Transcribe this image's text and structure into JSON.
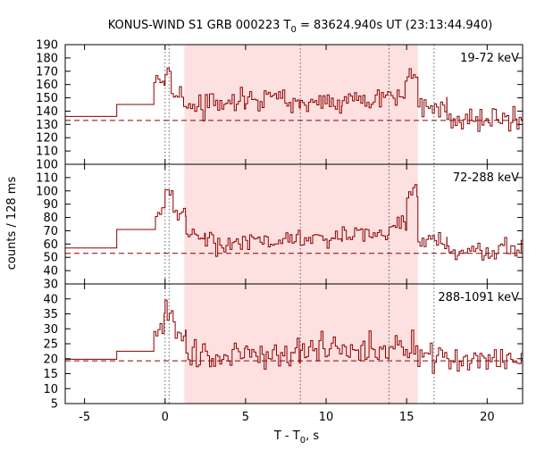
{
  "title": {
    "prefix": "KONUS-WIND S1 GRB 000223 T",
    "sub": "0",
    "suffix": " = 83624.940s UT (23:13:44.940)"
  },
  "xlabel": {
    "prefix": "T - T",
    "sub": "0",
    "suffix": ", s"
  },
  "ylabel": "counts / 128 ms",
  "colors": {
    "curve": "#8b0000",
    "shade": "#fde0e0",
    "background": "#ffffff",
    "axes": "#000000",
    "guide": "#555555"
  },
  "chart_data": {
    "type": "line",
    "subtype": "step-histogram (three stacked light-curve panels)",
    "x_range": [
      -6.2,
      22.2
    ],
    "x_ticks": [
      -5,
      0,
      5,
      10,
      15,
      20
    ],
    "shaded_interval": [
      1.2,
      15.7
    ],
    "vertical_lines": [
      {
        "x": 0.0,
        "style": "dotted"
      },
      {
        "x": 0.25,
        "style": "dotted"
      },
      {
        "x": 8.4,
        "style": "dotted"
      },
      {
        "x": 13.9,
        "style": "dotted"
      },
      {
        "x": 16.7,
        "style": "dotted"
      }
    ],
    "panels": [
      {
        "label": "19-72 keV",
        "ylim": [
          100,
          190
        ],
        "y_ticks": [
          100,
          110,
          120,
          130,
          140,
          150,
          160,
          170,
          180,
          190
        ],
        "background_level": 133,
        "pre_trigger_steps": [
          {
            "x0": -6.2,
            "x1": -3.0,
            "y": 136
          },
          {
            "x0": -3.0,
            "x1": -0.7,
            "y": 145
          }
        ],
        "bins": [
          {
            "x0": -0.7,
            "x1": 0.0,
            "y": 164
          },
          {
            "x0": 0.0,
            "x1": 0.384,
            "y": 173
          },
          {
            "x0": 0.384,
            "x1": 1.2,
            "y": 152
          },
          {
            "x0": 1.2,
            "x1": 2.5,
            "y": 143
          },
          {
            "x0": 2.5,
            "x1": 5.0,
            "y": 148
          },
          {
            "x0": 5.0,
            "x1": 8.4,
            "y": 149
          },
          {
            "x0": 8.4,
            "x1": 11.0,
            "y": 147
          },
          {
            "x0": 11.0,
            "x1": 13.9,
            "y": 150
          },
          {
            "x0": 13.9,
            "x1": 14.9,
            "y": 152
          },
          {
            "x0": 14.9,
            "x1": 15.7,
            "y": 165
          },
          {
            "x0": 15.7,
            "x1": 17.5,
            "y": 142
          },
          {
            "x0": 17.5,
            "x1": 22.2,
            "y": 134
          }
        ],
        "noise": 12
      },
      {
        "label": "72-288 keV",
        "ylim": [
          30,
          120
        ],
        "y_ticks": [
          30,
          40,
          50,
          60,
          70,
          80,
          90,
          100,
          110
        ],
        "background_level": 53,
        "pre_trigger_steps": [
          {
            "x0": -6.2,
            "x1": -3.0,
            "y": 57
          },
          {
            "x0": -3.0,
            "x1": -0.6,
            "y": 71
          }
        ],
        "bins": [
          {
            "x0": -0.6,
            "x1": 0.0,
            "y": 84
          },
          {
            "x0": 0.0,
            "x1": 0.5,
            "y": 97
          },
          {
            "x0": 0.5,
            "x1": 1.3,
            "y": 82
          },
          {
            "x0": 1.3,
            "x1": 2.5,
            "y": 66
          },
          {
            "x0": 2.5,
            "x1": 5.0,
            "y": 60
          },
          {
            "x0": 5.0,
            "x1": 7.5,
            "y": 63
          },
          {
            "x0": 7.5,
            "x1": 11.0,
            "y": 64
          },
          {
            "x0": 11.0,
            "x1": 13.9,
            "y": 67
          },
          {
            "x0": 13.9,
            "x1": 15.0,
            "y": 76
          },
          {
            "x0": 15.0,
            "x1": 15.7,
            "y": 99
          },
          {
            "x0": 15.7,
            "x1": 17.5,
            "y": 63
          },
          {
            "x0": 17.5,
            "x1": 22.2,
            "y": 56
          }
        ],
        "noise": 11
      },
      {
        "label": "288-1091 keV",
        "ylim": [
          5,
          45
        ],
        "y_ticks": [
          5,
          10,
          15,
          20,
          25,
          30,
          35,
          40
        ],
        "background_level": 19.3,
        "pre_trigger_steps": [
          {
            "x0": -6.2,
            "x1": -3.0,
            "y": 19.8
          },
          {
            "x0": -3.0,
            "x1": -0.7,
            "y": 22.5
          }
        ],
        "bins": [
          {
            "x0": -0.7,
            "x1": 0.0,
            "y": 30
          },
          {
            "x0": 0.0,
            "x1": 0.5,
            "y": 38
          },
          {
            "x0": 0.5,
            "x1": 1.3,
            "y": 27
          },
          {
            "x0": 1.3,
            "x1": 2.5,
            "y": 21
          },
          {
            "x0": 2.5,
            "x1": 5.0,
            "y": 21
          },
          {
            "x0": 5.0,
            "x1": 8.4,
            "y": 22
          },
          {
            "x0": 8.4,
            "x1": 11.0,
            "y": 23
          },
          {
            "x0": 11.0,
            "x1": 13.9,
            "y": 23
          },
          {
            "x0": 13.9,
            "x1": 15.7,
            "y": 25
          },
          {
            "x0": 15.7,
            "x1": 17.5,
            "y": 21
          },
          {
            "x0": 17.5,
            "x1": 22.2,
            "y": 20
          }
        ],
        "noise": 7
      }
    ]
  }
}
